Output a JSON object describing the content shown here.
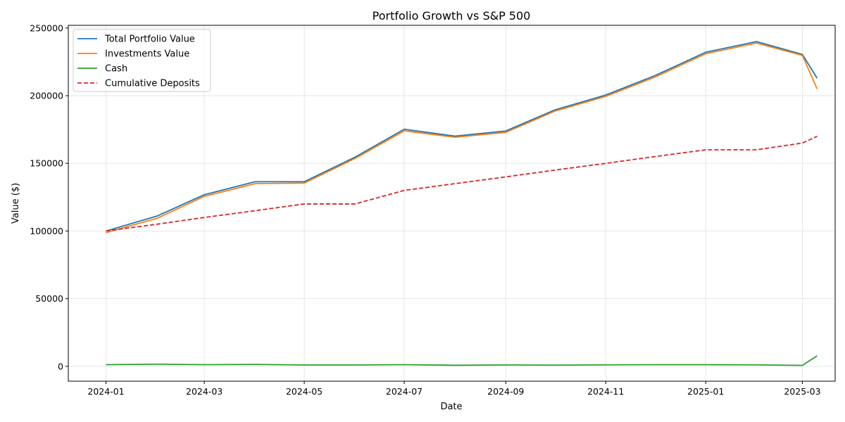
{
  "chart_data": {
    "type": "line",
    "title": "Portfolio Growth vs S&P 500",
    "xlabel": "Date",
    "ylabel": "Value ($)",
    "x_range": [
      "2023-12-09",
      "2025-03-21"
    ],
    "ylim": [
      -11000,
      252000
    ],
    "grid": true,
    "legend_position": "top-left",
    "x_ticks": [
      {
        "date": "2024-01-01",
        "label": "2024-01"
      },
      {
        "date": "2024-03-01",
        "label": "2024-03"
      },
      {
        "date": "2024-05-01",
        "label": "2024-05"
      },
      {
        "date": "2024-07-01",
        "label": "2024-07"
      },
      {
        "date": "2024-09-01",
        "label": "2024-09"
      },
      {
        "date": "2024-11-01",
        "label": "2024-11"
      },
      {
        "date": "2025-01-01",
        "label": "2025-01"
      },
      {
        "date": "2025-03-01",
        "label": "2025-03"
      }
    ],
    "y_ticks": [
      0,
      50000,
      100000,
      150000,
      200000,
      250000
    ],
    "x": [
      "2024-01-01",
      "2024-02-01",
      "2024-03-01",
      "2024-04-01",
      "2024-05-01",
      "2024-06-01",
      "2024-07-01",
      "2024-08-01",
      "2024-09-01",
      "2024-10-01",
      "2024-11-01",
      "2024-12-01",
      "2025-01-01",
      "2025-02-01",
      "2025-03-01",
      "2025-03-10"
    ],
    "series": [
      {
        "name": "Total Portfolio Value",
        "color": "#1f77b4",
        "dash": "solid",
        "values": [
          100000,
          111000,
          126800,
          136400,
          136400,
          154600,
          175200,
          170100,
          173900,
          189500,
          200500,
          214800,
          232100,
          240000,
          230500,
          212900
        ]
      },
      {
        "name": "Investments Value",
        "color": "#ff7f0e",
        "dash": "solid",
        "values": [
          98800,
          109300,
          125600,
          135000,
          135400,
          153600,
          174000,
          169300,
          172900,
          188600,
          199500,
          213700,
          231000,
          238900,
          229800,
          205000
        ]
      },
      {
        "name": "Cash",
        "color": "#2ca02c",
        "dash": "solid",
        "values": [
          1200,
          1600,
          1200,
          1400,
          1000,
          1000,
          1200,
          800,
          1000,
          900,
          1100,
          1200,
          1200,
          1100,
          700,
          7800
        ]
      },
      {
        "name": "Cumulative Deposits",
        "color": "#d62728",
        "dash": "dashed",
        "values": [
          100000,
          105000,
          110000,
          115000,
          120000,
          120000,
          130000,
          135000,
          140000,
          145000,
          150000,
          155000,
          160000,
          160000,
          165000,
          170000
        ]
      }
    ]
  }
}
